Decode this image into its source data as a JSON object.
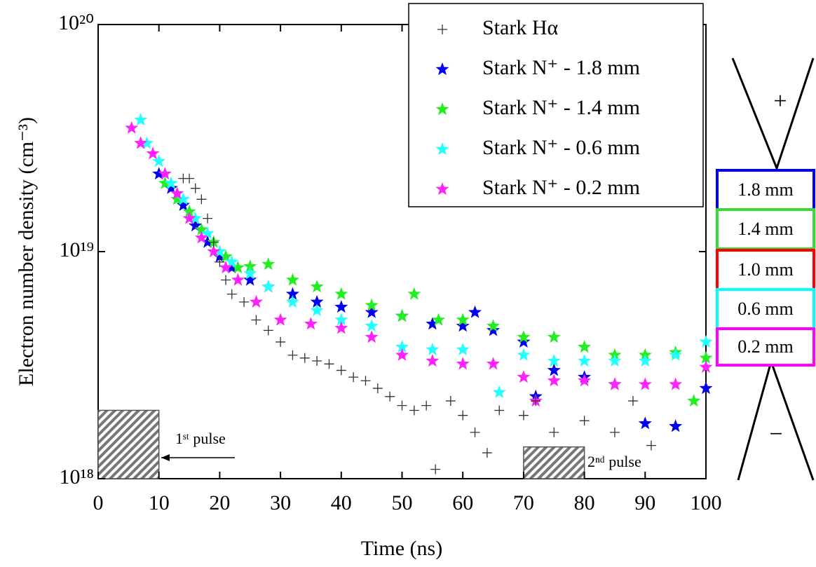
{
  "chart_data": {
    "type": "scatter",
    "xlabel": "Time (ns)",
    "ylabel": "Electron number density (cm⁻³)",
    "xlim": [
      0,
      100
    ],
    "xticks": [
      0,
      10,
      20,
      30,
      40,
      50,
      60,
      70,
      80,
      90,
      100
    ],
    "ylim": [
      1e+18,
      1e+20
    ],
    "yticks": [
      {
        "value": 1e+18,
        "label": "10¹⁸"
      },
      {
        "value": 1e+19,
        "label": "10¹⁹"
      },
      {
        "value": 1e+20,
        "label": "10²⁰"
      }
    ],
    "yscale": "log",
    "legend": "upper right",
    "pulses": [
      {
        "label": "1ˢᵗ pulse",
        "start": 0,
        "end": 10,
        "top": 2e+18
      },
      {
        "label": "2ⁿᵈ pulse",
        "start": 70,
        "end": 80,
        "top": 1.38e+18
      }
    ],
    "electrode": {
      "plus": "+",
      "minus": "−",
      "gaps": [
        {
          "label": "1.8 mm",
          "color": "#0000ff"
        },
        {
          "label": "1.4 mm",
          "color": "#33dd33"
        },
        {
          "label": "1.0 mm",
          "color": "#ff0000"
        },
        {
          "label": "0.6 mm",
          "color": "#00ffff"
        },
        {
          "label": "0.2 mm",
          "color": "#ff00ff"
        }
      ]
    },
    "series": [
      {
        "name": "Stark Hα",
        "color": "#333333",
        "marker": "plus",
        "x": [
          14,
          15,
          16,
          17,
          18,
          19,
          20,
          21,
          22,
          24,
          26,
          28,
          30,
          32,
          34,
          36,
          38,
          40,
          42,
          44,
          46,
          48,
          50,
          52,
          54,
          55.5,
          58,
          60,
          62,
          64,
          66,
          70,
          72,
          75,
          80,
          85,
          88,
          91
        ],
        "values": [
          2.1e+19,
          2.1e+19,
          1.9e+19,
          1.7e+19,
          1.4e+19,
          1.1e+19,
          9e+18,
          7.5e+18,
          6.5e+18,
          6e+18,
          5e+18,
          4.5e+18,
          4e+18,
          3.5e+18,
          3.4e+18,
          3.3e+18,
          3.2e+18,
          3e+18,
          2.8e+18,
          2.7e+18,
          2.5e+18,
          2.3e+18,
          2.1e+18,
          2e+18,
          2.1e+18,
          1.1e+18,
          2.2e+18,
          1.9e+18,
          1.6e+18,
          1.3e+18,
          2e+18,
          1.9e+18,
          2.2e+18,
          1.6e+18,
          1.8e+18,
          1.6e+18,
          2.2e+18,
          1.4e+18
        ]
      },
      {
        "name": "Stark N⁺ - 1.8 mm",
        "color": "#0000ee",
        "marker": "star",
        "x": [
          10,
          12,
          14,
          16,
          18,
          20,
          22,
          25,
          28,
          32,
          36,
          40,
          45,
          50,
          55,
          60,
          62,
          65,
          70,
          72,
          75,
          80,
          85,
          90,
          95,
          100
        ],
        "values": [
          2.2e+19,
          1.9e+19,
          1.6e+19,
          1.3e+19,
          1.1e+19,
          9.5e+18,
          8.5e+18,
          7.5e+18,
          7e+18,
          6.5e+18,
          6e+18,
          5.7e+18,
          5.4e+18,
          5.2e+18,
          4.8e+18,
          4.7e+18,
          5.4e+18,
          4.5e+18,
          4e+18,
          2.3e+18,
          3e+18,
          2.8e+18,
          2.6e+18,
          1.75e+18,
          1.7e+18,
          2.5e+18
        ]
      },
      {
        "name": "Stark N⁺ - 1.4 mm",
        "color": "#22ee22",
        "marker": "star",
        "x": [
          11,
          13,
          15,
          17,
          19,
          21,
          23,
          25,
          28,
          32,
          36,
          40,
          45,
          50,
          52,
          56,
          60,
          65,
          70,
          75,
          80,
          85,
          90,
          95,
          98,
          100
        ],
        "values": [
          2e+19,
          1.7e+19,
          1.5e+19,
          1.25e+19,
          1.1e+19,
          9.5e+18,
          8.5e+18,
          8.6e+18,
          8.8e+18,
          7.5e+18,
          7e+18,
          6.5e+18,
          5.8e+18,
          5.2e+18,
          6.5e+18,
          5e+18,
          5e+18,
          4.7e+18,
          4.2e+18,
          4.2e+18,
          3.8e+18,
          3.5e+18,
          3.5e+18,
          3.6e+18,
          2.2e+18,
          3.4e+18
        ]
      },
      {
        "name": "Stark N⁺ - 0.6 mm",
        "color": "#22ffff",
        "marker": "star",
        "x": [
          7,
          8,
          10,
          12,
          14,
          16,
          18,
          20,
          22,
          25,
          28,
          32,
          36,
          40,
          45,
          50,
          55,
          60,
          66,
          70,
          75,
          80,
          85,
          90,
          95,
          100
        ],
        "values": [
          3.8e+19,
          3e+19,
          2.5e+19,
          2e+19,
          1.7e+19,
          1.4e+19,
          1.2e+19,
          1e+19,
          9e+18,
          8e+18,
          7e+18,
          6e+18,
          5.5e+18,
          5e+18,
          4.7e+18,
          3.8e+18,
          3.7e+18,
          3.7e+18,
          2.4e+18,
          3.5e+18,
          3.3e+18,
          3.3e+18,
          3.3e+18,
          3.3e+18,
          3.5e+18,
          4e+18
        ]
      },
      {
        "name": "Stark N⁺ - 0.2 mm",
        "color": "#ff22ff",
        "marker": "star",
        "x": [
          5.5,
          7,
          9,
          11,
          13,
          15,
          17,
          19,
          21,
          23,
          26,
          30,
          35,
          40,
          45,
          50,
          55,
          60,
          65,
          70,
          72,
          75,
          80,
          85,
          90,
          95,
          100
        ],
        "values": [
          3.5e+19,
          3e+19,
          2.7e+19,
          2.2e+19,
          1.8e+19,
          1.4e+19,
          1.15e+19,
          1e+19,
          8.5e+18,
          7.5e+18,
          6e+18,
          5e+18,
          4.8e+18,
          4.6e+18,
          4.2e+18,
          3.5e+18,
          3.3e+18,
          3.2e+18,
          3.2e+18,
          2.8e+18,
          2.2e+18,
          2.7e+18,
          2.7e+18,
          2.6e+18,
          2.6e+18,
          2.6e+18,
          3.1e+18
        ]
      }
    ]
  }
}
